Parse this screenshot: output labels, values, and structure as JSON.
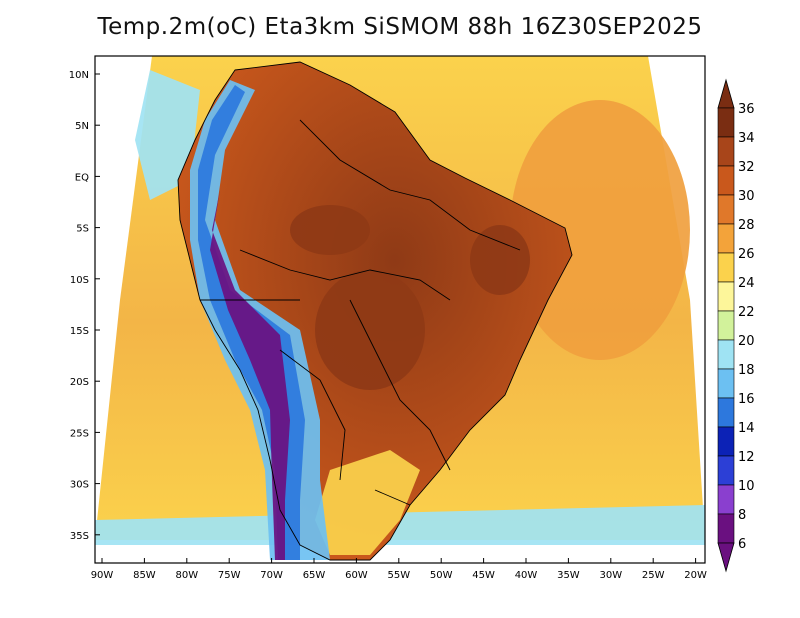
{
  "title": "Temp.2m(oC) Eta3km SiSMOM 88h 16Z30SEP2025",
  "lat_labels": [
    "10N",
    "5N",
    "EQ",
    "5S",
    "10S",
    "15S",
    "20S",
    "25S",
    "30S",
    "35S"
  ],
  "lon_labels": [
    "90W",
    "85W",
    "80W",
    "75W",
    "70W",
    "65W",
    "60W",
    "55W",
    "50W",
    "45W",
    "40W",
    "35W",
    "30W",
    "25W",
    "20W"
  ],
  "colorbar": {
    "labels": [
      "36",
      "34",
      "32",
      "30",
      "28",
      "26",
      "24",
      "22",
      "20",
      "18",
      "16",
      "14",
      "12",
      "10",
      "8",
      "6"
    ],
    "colors": [
      "#7a2d12",
      "#a8451a",
      "#c9581c",
      "#e0782a",
      "#f3a33a",
      "#fbd24c",
      "#fdf69a",
      "#d2f29b",
      "#9fe3f3",
      "#6cc0f2",
      "#2d78dd",
      "#0c22b6",
      "#2c3fd6",
      "#8a3fcf",
      "#6a1080"
    ]
  },
  "palette": {
    "ocean": "#f3b547",
    "ocean_warm": "#f0a03e",
    "ocean_cool": "#fbd24c",
    "coast_cool": "#9fe3f3",
    "land_hot": "#c9581c",
    "land_very_hot": "#8f3a16",
    "andes_high": "#6a1080",
    "andes_mid": "#2d78dd",
    "andes_low": "#6cc0f2"
  }
}
